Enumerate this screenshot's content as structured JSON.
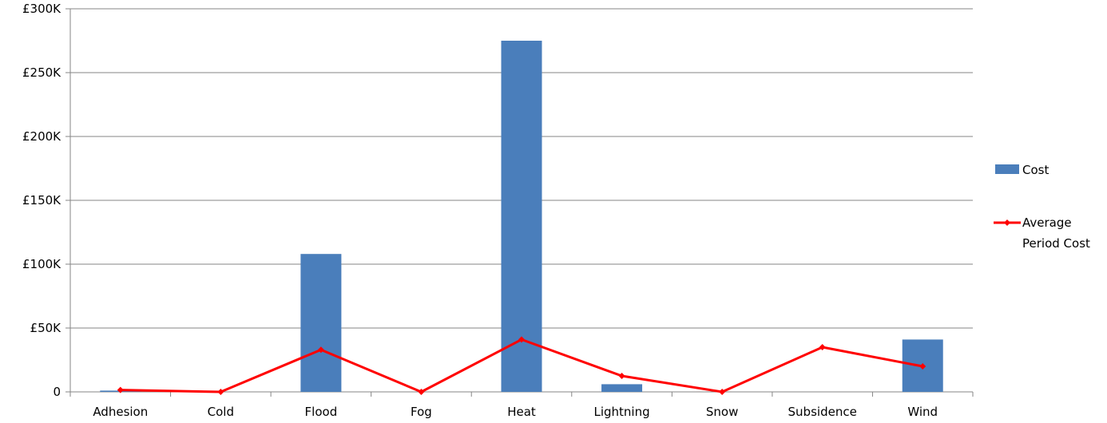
{
  "chart_data": {
    "type": "bar",
    "categories": [
      "Adhesion",
      "Cold",
      "Flood",
      "Fog",
      "Heat",
      "Lightning",
      "Snow",
      "Subsidence",
      "Wind"
    ],
    "series": [
      {
        "name": "Cost",
        "type": "bar",
        "color": "#4a7ebb",
        "values": [
          1000,
          0,
          108000,
          0,
          275000,
          6000,
          0,
          0,
          41000
        ]
      },
      {
        "name": "Average Period Cost",
        "type": "line",
        "color": "#ff0000",
        "values": [
          1500,
          0,
          33000,
          0,
          41000,
          12500,
          0,
          35000,
          20000
        ]
      }
    ],
    "ylim": [
      0,
      300000
    ],
    "yticks": [
      0,
      50000,
      100000,
      150000,
      200000,
      250000,
      300000
    ],
    "ytick_labels": [
      "0",
      "£50K",
      "£100K",
      "£150K",
      "£200K",
      "£250K",
      "£300K"
    ],
    "grid": true,
    "legend_position": "right"
  },
  "legend": {
    "cost_label": "Cost",
    "avg_label_line1": "Average",
    "avg_label_line2": "Period Cost"
  }
}
